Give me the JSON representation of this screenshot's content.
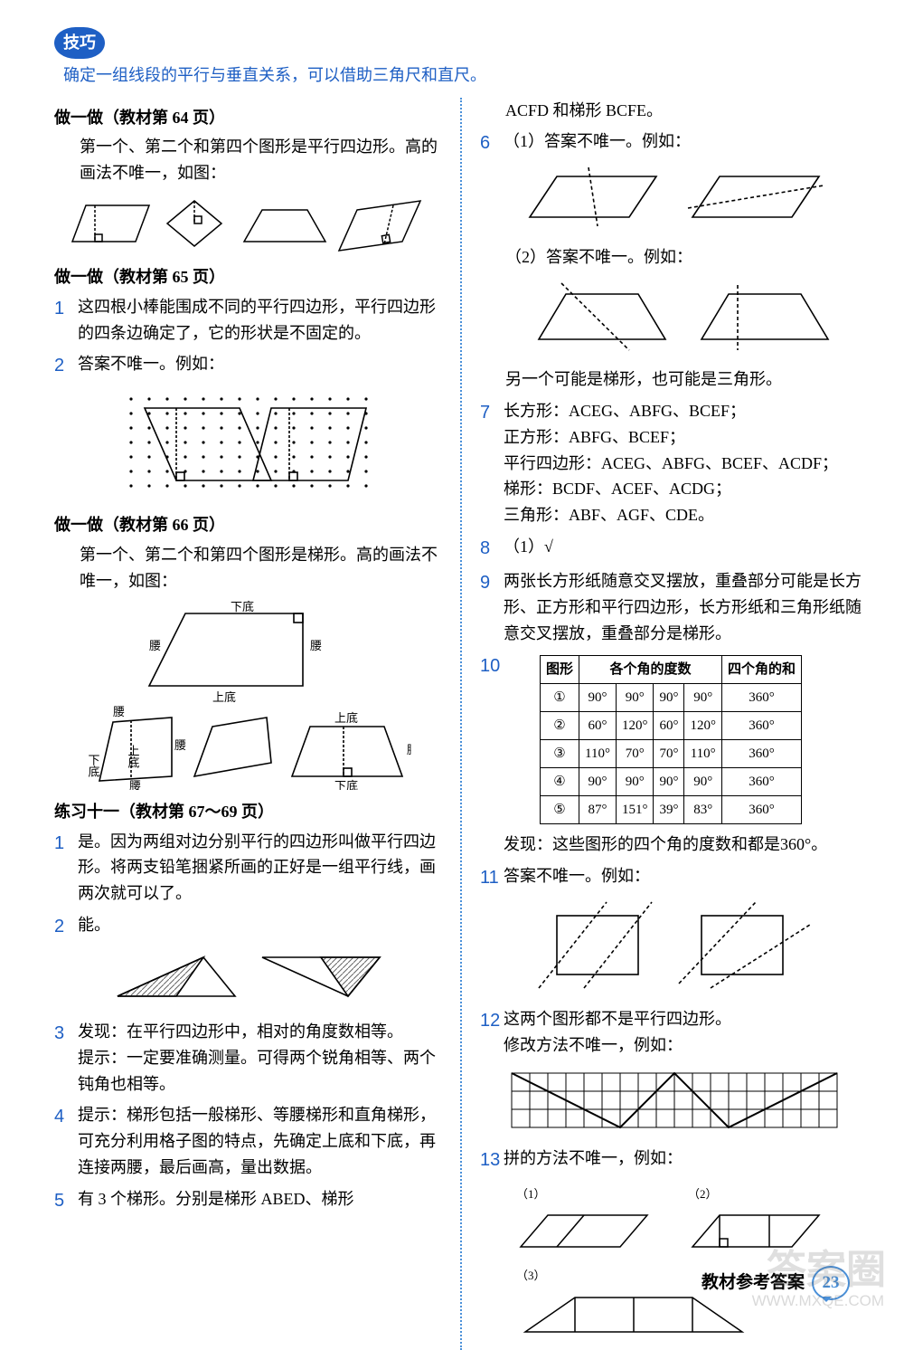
{
  "tip": {
    "badge": "技巧",
    "text": "确定一组线段的平行与垂直关系，可以借助三角尺和直尺。"
  },
  "left": {
    "s64": {
      "head": "做一做（教材第 64 页）",
      "text": "第一个、第二个和第四个图形是平行四边形。高的画法不唯一，如图："
    },
    "s65": {
      "head": "做一做（教材第 65 页）",
      "q1": "这四根小棒能围成不同的平行四边形，平行四边形的四条边确定了，它的形状是不固定的。",
      "q2": "答案不唯一。例如："
    },
    "s66": {
      "head": "做一做（教材第 66 页）",
      "text": "第一个、第二个和第四个图形是梯形。高的画法不唯一，如图："
    },
    "labels66": {
      "top": "下底",
      "waist": "腰",
      "bottom": "上底"
    },
    "ex11": {
      "head": "练习十一（教材第 67～69 页）",
      "q1": "是。因为两组对边分别平行的四边形叫做平行四边形。将两支铅笔捆紧所画的正好是一组平行线，画两次就可以了。",
      "q2": "能。",
      "q3": "发现：在平行四边形中，相对的角度数相等。\n提示：一定要准确测量。可得两个锐角相等、两个钝角也相等。",
      "q4": "提示：梯形包括一般梯形、等腰梯形和直角梯形，可充分利用格子图的特点，先确定上底和下底，再连接两腰，最后画高，量出数据。",
      "q5": "有 3 个梯形。分别是梯形 ABED、梯形"
    }
  },
  "right": {
    "cont5": "ACFD 和梯形 BCFE。",
    "q6a": "（1）答案不唯一。例如：",
    "q6b": "（2）答案不唯一。例如：",
    "q6c": "另一个可能是梯形，也可能是三角形。",
    "q7": "长方形：ACEG、ABFG、BCEF；\n正方形：ABFG、BCEF；\n平行四边形：ACEG、ABFG、BCEF、ACDF；\n梯形：BCDF、ACEF、ACDG；\n三角形：ABF、AGF、CDE。",
    "q8": "（1）√",
    "q9": "两张长方形纸随意交叉摆放，重叠部分可能是长方形、正方形和平行四边形，长方形纸和三角形纸随意交叉摆放，重叠部分是梯形。",
    "q10note": "发现：这些图形的四个角的度数和都是360°。",
    "q11": "答案不唯一。例如：",
    "q12a": "这两个图形都不是平行四边形。",
    "q12b": "修改方法不唯一，例如：",
    "q13": "拼的方法不唯一，例如：",
    "q13p1": "（1）",
    "q13p2": "（2）",
    "q13p3": "（3）"
  },
  "table10": {
    "headers": [
      "图形",
      "各个角的度数",
      "四个角的和"
    ],
    "rows": [
      {
        "id": "①",
        "a": [
          "90°",
          "90°",
          "90°",
          "90°"
        ],
        "sum": "360°"
      },
      {
        "id": "②",
        "a": [
          "60°",
          "120°",
          "60°",
          "120°"
        ],
        "sum": "360°"
      },
      {
        "id": "③",
        "a": [
          "110°",
          "70°",
          "70°",
          "110°"
        ],
        "sum": "360°"
      },
      {
        "id": "④",
        "a": [
          "90°",
          "90°",
          "90°",
          "90°"
        ],
        "sum": "360°"
      },
      {
        "id": "⑤",
        "a": [
          "87°",
          "151°",
          "39°",
          "83°"
        ],
        "sum": "360°"
      }
    ]
  },
  "footer": {
    "label": "教材参考答案",
    "page": "23"
  },
  "watermark": {
    "big": "答案圈",
    "small": "WWW.MXQE.COM"
  },
  "colors": {
    "accent": "#1e5fc4",
    "divider": "#4a90d9",
    "stroke": "#000000",
    "dash": "4,3",
    "grid_dot": "#000",
    "hatch": "#888"
  }
}
